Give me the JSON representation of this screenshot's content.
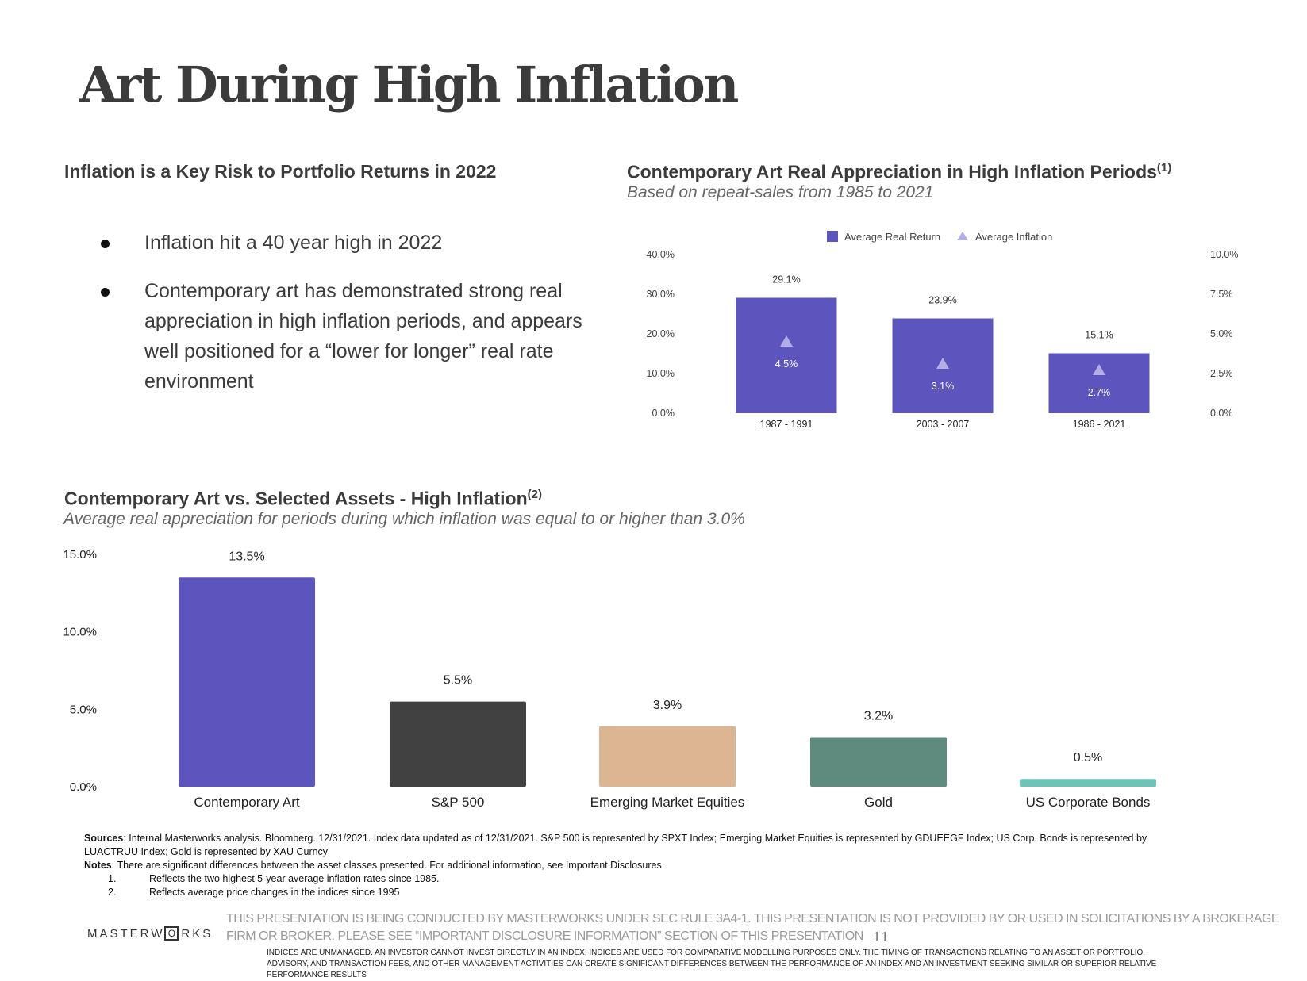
{
  "title": "Art During High Inflation",
  "left_section": {
    "heading": "Inflation is a Key Risk to Portfolio Returns in 2022",
    "bullets": [
      "Inflation hit a 40 year high in 2022",
      "Contemporary art has demonstrated strong real appreciation in high inflation periods, and appears well positioned for a “lower for longer” real rate environment"
    ]
  },
  "chart_data": [
    {
      "type": "bar",
      "title": "Contemporary Art Real Appreciation in High Inflation Periods",
      "title_sup": "(1)",
      "subtitle": "Based on repeat-sales from 1985 to 2021",
      "categories": [
        "1987 - 1991",
        "2003 - 2007",
        "1986 - 2021"
      ],
      "series": [
        {
          "name": "Average Real Return",
          "values": [
            29.1,
            23.9,
            15.1
          ],
          "labels": [
            "29.1%",
            "23.9%",
            "15.1%"
          ],
          "color": "#5b55bd",
          "axis": "left"
        },
        {
          "name": "Average Inflation",
          "values": [
            4.5,
            3.1,
            2.7
          ],
          "labels": [
            "4.5%",
            "3.1%",
            "2.7%"
          ],
          "color": "#b3aee6",
          "marker": "triangle",
          "axis": "right"
        }
      ],
      "ylim": [
        0,
        40
      ],
      "yticks": [
        "0.0%",
        "10.0%",
        "20.0%",
        "30.0%",
        "40.0%"
      ],
      "y2lim": [
        0,
        10
      ],
      "y2ticks": [
        "0.0%",
        "2.5%",
        "5.0%",
        "7.5%",
        "10.0%"
      ],
      "legend": "top",
      "grid": false
    },
    {
      "type": "bar",
      "title": "Contemporary Art vs. Selected Assets - High Inflation",
      "title_sup": "(2)",
      "subtitle": "Average real appreciation for periods during which inflation was equal to or higher than 3.0%",
      "categories": [
        "Contemporary Art",
        "S&P 500",
        "Emerging Market Equities",
        "Gold",
        "US Corporate Bonds"
      ],
      "values": [
        13.5,
        5.5,
        3.9,
        3.2,
        0.5
      ],
      "labels": [
        "13.5%",
        "5.5%",
        "3.9%",
        "3.2%",
        "0.5%"
      ],
      "colors": [
        "#5b55bd",
        "#414141",
        "#dcb592",
        "#5f8a7e",
        "#6cc4b7"
      ],
      "ylim": [
        0,
        15
      ],
      "yticks": [
        "0.0%",
        "5.0%",
        "10.0%",
        "15.0%"
      ],
      "grid": false
    }
  ],
  "footer": {
    "sources_label": "Sources",
    "sources_text": ": Internal Masterworks analysis. Bloomberg. 12/31/2021. Index data updated as of 12/31/2021. S&P 500 is represented by SPXT Index; Emerging Market Equities is represented by GDUEEGF Index; US Corp. Bonds is represented by",
    "sources_text2": "LUACTRUU Index; Gold is represented by XAU Curncy",
    "notes_label": "Notes",
    "notes_text": ": There are significant differences between the asset classes presented. For additional information, see Important Disclosures.",
    "notes": [
      {
        "num": "1.",
        "text": "Reflects the two highest 5-year average inflation rates since 1985."
      },
      {
        "num": "2.",
        "text": "Reflects average price changes in the indices since 1995"
      }
    ],
    "logo_pre": "MASTERW",
    "logo_o": "O",
    "logo_post": "RKS",
    "disclaimer_line1": "THIS PRESENTATION  IS BEING CONDUCTED BY MASTERWORKS UNDER SEC RULE 3A4-1. THIS PRESENTATION  IS NOT PROVIDED BY OR USED IN SOLICITATIONS BY A BROKERAGE",
    "disclaimer_line2": "FIRM OR BROKER. PLEASE SEE “IMPORTANT DISCLOSURE INFORMATION” SECTION OF THIS PRESENTATION",
    "page_number": "11",
    "indices_note": "INDICES ARE UNMANAGED. AN INVESTOR CANNOT INVEST DIRECTLY IN AN INDEX. INDICES ARE USED FOR COMPARATIVE MODELLING PURPOSES ONLY. THE TIMING OF TRANSACTIONS RELATING TO AN ASSET OR PORTFOLIO, ADVISORY, AND TRANSACTION FEES, AND OTHER MANAGEMENT ACTIVITIES CAN CREATE SIGNIFICANT DIFFERENCES BETWEEN THE PERFORMANCE OF AN INDEX AND AN INVESTMENT SEEKING SIMILAR OR SUPERIOR RELATIVE PERFORMANCE RESULTS"
  }
}
